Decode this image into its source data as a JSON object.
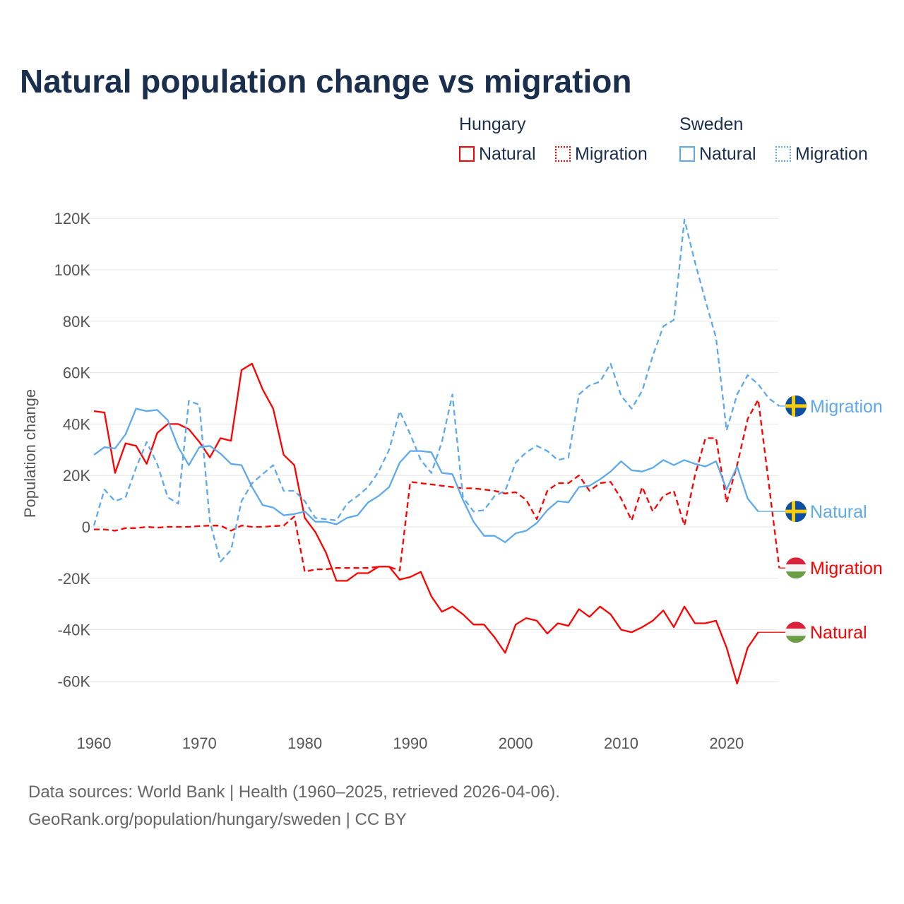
{
  "title": "Natural population change vs migration",
  "legend": {
    "groups": [
      {
        "name": "Hungary",
        "items": [
          "Natural",
          "Migration"
        ]
      },
      {
        "name": "Sweden",
        "items": [
          "Natural",
          "Migration"
        ]
      }
    ]
  },
  "footer": {
    "line1": "Data sources: World Bank | Health (1960–2025, retrieved 2026-04-06).",
    "line2": "GeoRank.org/population/hungary/sweden | CC BY"
  },
  "colors": {
    "hungary": "#ff0000",
    "sweden": "#5ea8ec"
  },
  "chart_data": {
    "type": "line",
    "title": "Natural population change vs migration",
    "xlabel": "",
    "ylabel": "Population change",
    "xlim": [
      1960,
      2025
    ],
    "ylim": [
      -70000,
      125000
    ],
    "yticks": [
      -60000,
      -40000,
      -20000,
      0,
      20000,
      40000,
      60000,
      80000,
      100000,
      120000
    ],
    "ytick_labels": [
      "-60K",
      "-40K",
      "-20K",
      "0",
      "20K",
      "40K",
      "60K",
      "80K",
      "100K",
      "120K"
    ],
    "xticks": [
      1960,
      1970,
      1980,
      1990,
      2000,
      2010,
      2020
    ],
    "xtick_labels": [
      "1960",
      "1970",
      "1980",
      "1990",
      "2000",
      "2010",
      "2020"
    ],
    "grid": true,
    "legend_position": "top-right",
    "series": [
      {
        "name": "Hungary Natural",
        "label": "Natural",
        "country": "hungary",
        "dash": false,
        "start": 1960,
        "extend_to": 2025,
        "values": [
          45,
          44.5,
          21,
          32.5,
          31.5,
          24.5,
          36.5,
          40,
          40,
          38,
          33,
          27,
          34.5,
          33.5,
          61,
          63.5,
          53.5,
          46,
          28,
          24,
          3.5,
          -2,
          -10,
          -21,
          -21,
          -18,
          -18,
          -15.5,
          -15.5,
          -20.5,
          -19.5,
          -17.5,
          -27,
          -33,
          -31,
          -34,
          -38,
          -38,
          -43,
          -49,
          -38,
          -35.5,
          -36.5,
          -41.5,
          -37.5,
          -38.5,
          -32,
          -35,
          -31,
          -34,
          -40,
          -41,
          -39,
          -36.5,
          -32.5,
          -39,
          -31,
          -37.5,
          -37.5,
          -36.5,
          -47,
          -61,
          -47,
          -41
        ]
      },
      {
        "name": "Hungary Migration",
        "label": "Migration",
        "country": "hungary",
        "dash": true,
        "start": 1960,
        "extend_to": 2025,
        "values": [
          -1,
          -1,
          -1.5,
          -0.5,
          -0.5,
          0,
          -0.3,
          0,
          0,
          0,
          0.3,
          0.5,
          0.5,
          -1.5,
          0.5,
          0,
          0,
          0.3,
          0.5,
          4,
          -17.5,
          -16.5,
          -16.5,
          -16,
          -16,
          -16,
          -16,
          -15.5,
          -15.5,
          -17,
          17.5,
          17,
          16.5,
          16,
          15.5,
          15,
          15,
          14.5,
          14,
          13,
          13.5,
          10.5,
          3,
          14,
          17,
          17,
          20,
          14,
          17,
          17.5,
          11,
          2.5,
          15.5,
          6,
          12,
          14,
          0.5,
          20,
          34.5,
          34.5,
          9.5,
          24,
          42,
          49.5,
          17,
          -16
        ]
      },
      {
        "name": "Sweden Natural",
        "label": "Natural",
        "country": "sweden",
        "dash": false,
        "start": 1960,
        "extend_to": 2025,
        "values": [
          28,
          31,
          30.5,
          36,
          46,
          45,
          45.5,
          41.5,
          31,
          24,
          31,
          31.5,
          28.5,
          24.5,
          24,
          15.5,
          8.5,
          7.5,
          4.5,
          5,
          6,
          2,
          2,
          1,
          3.5,
          4.5,
          9.5,
          12,
          15.5,
          25,
          29.5,
          29.5,
          29,
          21,
          20.5,
          10.5,
          2,
          -3.5,
          -3.5,
          -6,
          -2.5,
          -1.5,
          1.5,
          6.5,
          10,
          9.5,
          15.5,
          16,
          18.5,
          21.5,
          25.5,
          22,
          21.5,
          23,
          26,
          24,
          26,
          24.5,
          23.5,
          25.5,
          14.5,
          23.5,
          11,
          6
        ]
      },
      {
        "name": "Sweden Migration",
        "label": "Migration",
        "country": "sweden",
        "dash": true,
        "start": 1960,
        "extend_to": 2025,
        "values": [
          0.5,
          14.5,
          10,
          11.5,
          23,
          33,
          24.5,
          11.5,
          9,
          49,
          47.5,
          2,
          -13.5,
          -9,
          10,
          17,
          20.5,
          24,
          14,
          14,
          10,
          3.5,
          3,
          2.5,
          9,
          12,
          15.5,
          21.5,
          30,
          45,
          36,
          26,
          21,
          33,
          51.5,
          11.5,
          6,
          6.5,
          12,
          14,
          25,
          29,
          31.5,
          29.5,
          26,
          27,
          51.5,
          55,
          56.5,
          63.5,
          51,
          46,
          53,
          66.5,
          78,
          80.5,
          119.5,
          103,
          88,
          73.5,
          37.5,
          51.5,
          59,
          55.5,
          50,
          47
        ]
      }
    ],
    "value_unit": "thousands"
  }
}
